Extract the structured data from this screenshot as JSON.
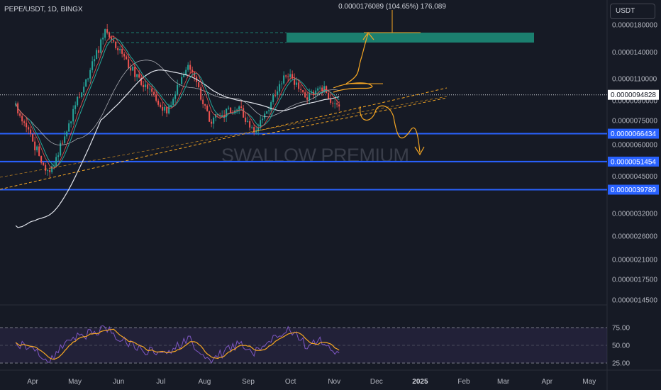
{
  "header": {
    "symbol_line": "PEPE/USDT, 1D, BINGX",
    "currency": "USDT",
    "projection_label": "0.0000176089 (104.65%) 176,089",
    "watermark": "SWALLOW PREMIUM"
  },
  "colors": {
    "background": "#161a25",
    "up_candle": "#26a69a",
    "down_candle": "#ef5350",
    "level_line": "#2962ff",
    "annotation": "#f5a623",
    "target_zone": "#1b7f6f",
    "rsi_line": "#7e57c2",
    "rsi_ma": "#f5a623"
  },
  "chart_data": [
    {
      "type": "candlestick",
      "scale": "log",
      "x_ticks": [
        "Apr",
        "May",
        "Jun",
        "Jul",
        "Aug",
        "Sep",
        "Oct",
        "Nov",
        "Dec",
        "2025",
        "Feb",
        "Mar",
        "Apr",
        "May"
      ],
      "y_ticks": [
        "0.0000180000",
        "0.0000140000",
        "0.0000110000",
        "0.0000090000",
        "0.0000075000",
        "0.0000060000",
        "0.0000045000",
        "0.0000032000",
        "0.0000026000",
        "0.0000021000",
        "0.0000017500",
        "0.0000014500"
      ],
      "y_tick_values": [
        1.8e-05,
        1.4e-05,
        1.1e-05,
        9e-06,
        7.5e-06,
        6e-06,
        4.5e-06,
        3.2e-06,
        2.6e-06,
        2.1e-06,
        1.75e-06,
        1.45e-06
      ],
      "current_price": "0.0000094828",
      "current_price_value": 9.4828e-06,
      "levels": [
        {
          "label": "0.0000066434",
          "value": 6.6434e-06
        },
        {
          "label": "0.0000051454",
          "value": 5.1454e-06
        },
        {
          "label": "0.0000039789",
          "value": 3.9789e-06
        }
      ],
      "key_prices": [
        {
          "date": "2024-03-20",
          "close": 8.5e-06
        },
        {
          "date": "2024-04-13",
          "close": 4.5e-06
        },
        {
          "date": "2024-05-01",
          "close": 8.5e-06
        },
        {
          "date": "2024-05-23",
          "close": 1.7e-05
        },
        {
          "date": "2024-06-15",
          "close": 1.1e-05
        },
        {
          "date": "2024-07-05",
          "close": 8e-06
        },
        {
          "date": "2024-07-20",
          "close": 1.28e-05
        },
        {
          "date": "2024-08-05",
          "close": 7.5e-06
        },
        {
          "date": "2024-08-25",
          "close": 8.5e-06
        },
        {
          "date": "2024-09-06",
          "close": 6.7e-06
        },
        {
          "date": "2024-09-28",
          "close": 1.15e-05
        },
        {
          "date": "2024-10-12",
          "close": 9.3e-06
        },
        {
          "date": "2024-10-25",
          "close": 1e-05
        },
        {
          "date": "2024-11-04",
          "close": 8.2e-06
        },
        {
          "date": "2024-11-06",
          "close": 9.4828e-06
        }
      ]
    },
    {
      "type": "line",
      "name": "RSI",
      "y_ticks": [
        "75.00",
        "50.00",
        "25.00"
      ],
      "y_tick_values": [
        75,
        50,
        25
      ],
      "band": [
        30,
        70
      ],
      "key_values": [
        {
          "date": "2024-03-20",
          "value": 55
        },
        {
          "date": "2024-04-13",
          "value": 30
        },
        {
          "date": "2024-05-01",
          "value": 62
        },
        {
          "date": "2024-05-23",
          "value": 72
        },
        {
          "date": "2024-06-15",
          "value": 45
        },
        {
          "date": "2024-07-05",
          "value": 38
        },
        {
          "date": "2024-07-20",
          "value": 60
        },
        {
          "date": "2024-08-05",
          "value": 30
        },
        {
          "date": "2024-08-25",
          "value": 52
        },
        {
          "date": "2024-09-06",
          "value": 40
        },
        {
          "date": "2024-09-28",
          "value": 72
        },
        {
          "date": "2024-10-12",
          "value": 50
        },
        {
          "date": "2024-10-25",
          "value": 58
        },
        {
          "date": "2024-11-04",
          "value": 38
        },
        {
          "date": "2024-11-06",
          "value": 50
        }
      ]
    }
  ]
}
